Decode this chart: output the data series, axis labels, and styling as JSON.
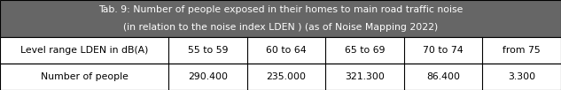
{
  "title_line1": "Tab. 9: Number of people exposed in their homes to main road traffic noise",
  "title_line2": "(in relation to the noise index LDEN ) (as of Noise Mapping 2022)",
  "header_col0": "Level range LDEN in dB(A)",
  "header_cols": [
    "55 to 59",
    "60 to 64",
    "65 to 69",
    "70 to 74",
    "from 75"
  ],
  "row_label": "Number of people",
  "row_values": [
    "290.400",
    "235.000",
    "321.300",
    "86.400",
    "3.300"
  ],
  "title_bg": "#666666",
  "title_fg": "#ffffff",
  "header_bg": "#ffffff",
  "header_fg": "#000000",
  "row_bg": "#ffffff",
  "row_fg": "#000000",
  "border_color": "#000000",
  "figw": 6.33,
  "figh": 1.02,
  "dpi": 100,
  "title_fontsize": 7.8,
  "cell_fontsize": 7.8
}
